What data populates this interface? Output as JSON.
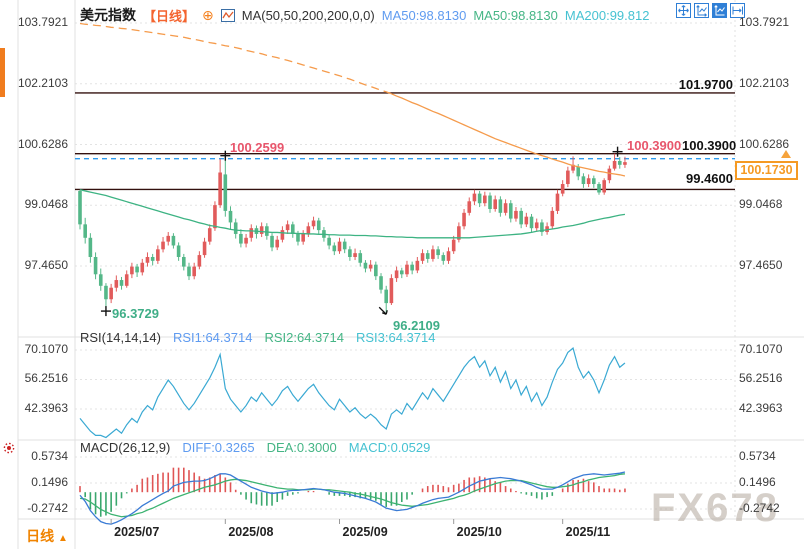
{
  "header": {
    "title": "美元指数",
    "period_tag": "【日线】",
    "plus_icon": "⊕",
    "ma_settings": "MA(50,50,200,200,0,0)",
    "ma50_a": "MA50:98.8130",
    "ma50_b": "MA50:98.8130",
    "ma200": "MA200:99.812"
  },
  "rsi_header": {
    "name": "RSI(14,14,14)",
    "rsi1": "RSI1:64.3714",
    "rsi2": "RSI2:64.3714",
    "rsi3": "RSI3:64.3714"
  },
  "macd_header": {
    "name": "MACD(26,12,9)",
    "diff": "DIFF:0.3265",
    "dea": "DEA:0.3000",
    "macd": "MACD:0.0529"
  },
  "levels": {
    "top_label": "101.9700",
    "mid_red": "100.3900",
    "mid_black": "100.3900",
    "low_label": "99.4600",
    "current": "100.1730"
  },
  "annotations": {
    "high": "100.2599",
    "low_july": "96.3729",
    "low_sep": "96.2109"
  },
  "axis": {
    "main": [
      "103.7921",
      "102.2103",
      "100.6286",
      "99.0468",
      "97.4650"
    ],
    "rsi": [
      "70.1070",
      "56.2516",
      "42.3963"
    ],
    "macd": [
      "0.5734",
      "0.1496",
      "-0.2742"
    ],
    "months": [
      "2025/07",
      "2025/08",
      "2025/09",
      "2025/10",
      "2025/11"
    ]
  },
  "footer": {
    "period": "日线",
    "arrow": "▲"
  },
  "watermark": "FX678",
  "colors": {
    "up": "#e15b5b",
    "down": "#54b788",
    "ma50": "#3db383",
    "ma200": "#f59b4c",
    "rsi": "#3aa9d3",
    "diff": "#3a7bd5",
    "dea": "#3cb371",
    "hist_up": "#e05555",
    "hist_dn": "#3aa76d",
    "level_line": "#33100e",
    "dashed_blue": "#2e9bf0",
    "grid": "#e3e3e3",
    "frame": "#e0e0e0",
    "accent_orange": "#f59a23"
  },
  "chart_data": {
    "type": "candlestick+rsi+macd",
    "title": "美元指数 日线",
    "months_index": [
      6,
      28,
      50,
      72,
      93
    ],
    "hlines": [
      101.97,
      100.39,
      99.46
    ],
    "dashed_level": 100.2599,
    "current_price": 100.173,
    "main_axis_ticks": [
      103.7921,
      102.2103,
      100.6286,
      99.0468,
      97.465
    ],
    "rsi_axis_ticks": [
      70.107,
      56.2516,
      42.3963
    ],
    "macd_axis_ticks": [
      0.5734,
      0.1496,
      -0.2742
    ],
    "markers": {
      "high_i": 28,
      "low1_i": 5,
      "low2_i": 59,
      "last_high_i": 103
    },
    "candles": [
      [
        99.42,
        99.45,
        98.42,
        98.55
      ],
      [
        98.55,
        98.72,
        98.05,
        98.2
      ],
      [
        98.2,
        98.32,
        97.55,
        97.7
      ],
      [
        97.7,
        97.82,
        97.12,
        97.25
      ],
      [
        97.25,
        97.4,
        96.82,
        96.95
      ],
      [
        96.95,
        97.02,
        96.37,
        96.6
      ],
      [
        96.6,
        97.0,
        96.5,
        96.9
      ],
      [
        96.9,
        97.22,
        96.8,
        97.1
      ],
      [
        97.1,
        97.18,
        96.85,
        96.95
      ],
      [
        96.95,
        97.35,
        96.9,
        97.25
      ],
      [
        97.25,
        97.55,
        97.15,
        97.45
      ],
      [
        97.45,
        97.52,
        97.18,
        97.3
      ],
      [
        97.3,
        97.65,
        97.22,
        97.55
      ],
      [
        97.55,
        97.82,
        97.45,
        97.7
      ],
      [
        97.7,
        97.78,
        97.48,
        97.6
      ],
      [
        97.6,
        98.0,
        97.52,
        97.9
      ],
      [
        97.9,
        98.22,
        97.82,
        98.1
      ],
      [
        98.1,
        98.35,
        98.0,
        98.25
      ],
      [
        98.25,
        98.32,
        97.92,
        98.0
      ],
      [
        98.0,
        98.08,
        97.6,
        97.7
      ],
      [
        97.7,
        97.78,
        97.35,
        97.45
      ],
      [
        97.45,
        97.55,
        97.1,
        97.2
      ],
      [
        97.2,
        97.55,
        97.12,
        97.45
      ],
      [
        97.45,
        97.85,
        97.38,
        97.75
      ],
      [
        97.75,
        98.2,
        97.68,
        98.1
      ],
      [
        98.1,
        98.55,
        98.02,
        98.45
      ],
      [
        98.45,
        99.15,
        98.38,
        99.05
      ],
      [
        99.05,
        100.26,
        98.98,
        99.9
      ],
      [
        99.85,
        100.24,
        98.75,
        98.9
      ],
      [
        98.9,
        99.02,
        98.42,
        98.6
      ],
      [
        98.6,
        98.7,
        98.18,
        98.3
      ],
      [
        98.3,
        98.42,
        97.95,
        98.05
      ],
      [
        98.05,
        98.3,
        97.95,
        98.2
      ],
      [
        98.2,
        98.55,
        98.1,
        98.45
      ],
      [
        98.45,
        98.52,
        98.18,
        98.3
      ],
      [
        98.3,
        98.6,
        98.22,
        98.5
      ],
      [
        98.5,
        98.58,
        98.15,
        98.25
      ],
      [
        98.25,
        98.32,
        97.85,
        97.95
      ],
      [
        97.95,
        98.25,
        97.88,
        98.15
      ],
      [
        98.15,
        98.5,
        98.08,
        98.4
      ],
      [
        98.4,
        98.65,
        98.3,
        98.55
      ],
      [
        98.55,
        98.62,
        98.2,
        98.3
      ],
      [
        98.3,
        98.38,
        98.0,
        98.1
      ],
      [
        98.1,
        98.4,
        98.02,
        98.3
      ],
      [
        98.3,
        98.6,
        98.22,
        98.5
      ],
      [
        98.5,
        98.75,
        98.42,
        98.65
      ],
      [
        98.65,
        98.72,
        98.3,
        98.4
      ],
      [
        98.4,
        98.48,
        98.1,
        98.2
      ],
      [
        98.2,
        98.28,
        97.9,
        98.0
      ],
      [
        98.0,
        98.08,
        97.75,
        97.85
      ],
      [
        97.85,
        98.2,
        97.78,
        98.1
      ],
      [
        98.1,
        98.18,
        97.8,
        97.9
      ],
      [
        97.9,
        97.98,
        97.6,
        97.7
      ],
      [
        97.7,
        97.92,
        97.62,
        97.8
      ],
      [
        97.8,
        97.88,
        97.45,
        97.55
      ],
      [
        97.55,
        97.62,
        97.3,
        97.4
      ],
      [
        97.4,
        97.62,
        97.32,
        97.5
      ],
      [
        97.5,
        97.58,
        97.1,
        97.2
      ],
      [
        97.2,
        97.28,
        96.75,
        96.85
      ],
      [
        96.85,
        96.95,
        96.21,
        96.5
      ],
      [
        96.5,
        97.25,
        96.45,
        97.15
      ],
      [
        97.15,
        97.45,
        97.05,
        97.35
      ],
      [
        97.35,
        97.42,
        97.15,
        97.25
      ],
      [
        97.25,
        97.6,
        97.18,
        97.5
      ],
      [
        97.5,
        97.58,
        97.25,
        97.35
      ],
      [
        97.35,
        97.7,
        97.28,
        97.6
      ],
      [
        97.6,
        97.9,
        97.52,
        97.8
      ],
      [
        97.8,
        97.88,
        97.55,
        97.65
      ],
      [
        97.65,
        98.0,
        97.58,
        97.9
      ],
      [
        97.9,
        97.98,
        97.65,
        97.75
      ],
      [
        97.75,
        97.82,
        97.5,
        97.6
      ],
      [
        97.6,
        97.95,
        97.52,
        97.85
      ],
      [
        97.85,
        98.25,
        97.78,
        98.15
      ],
      [
        98.15,
        98.6,
        98.08,
        98.5
      ],
      [
        98.5,
        98.95,
        98.42,
        98.85
      ],
      [
        98.85,
        99.25,
        98.78,
        99.15
      ],
      [
        99.15,
        99.45,
        99.05,
        99.35
      ],
      [
        99.35,
        99.42,
        99.0,
        99.1
      ],
      [
        99.1,
        99.4,
        99.02,
        99.3
      ],
      [
        99.3,
        99.38,
        98.85,
        98.95
      ],
      [
        98.95,
        99.3,
        98.88,
        99.2
      ],
      [
        99.2,
        99.28,
        98.75,
        98.85
      ],
      [
        98.85,
        99.2,
        98.78,
        99.1
      ],
      [
        99.1,
        99.18,
        98.6,
        98.7
      ],
      [
        98.7,
        99.0,
        98.62,
        98.9
      ],
      [
        98.9,
        98.98,
        98.45,
        98.55
      ],
      [
        98.55,
        98.85,
        98.48,
        98.75
      ],
      [
        98.75,
        98.82,
        98.35,
        98.45
      ],
      [
        98.45,
        98.7,
        98.38,
        98.6
      ],
      [
        98.6,
        98.68,
        98.25,
        98.35
      ],
      [
        98.35,
        98.6,
        98.28,
        98.5
      ],
      [
        98.5,
        99.0,
        98.42,
        98.9
      ],
      [
        98.9,
        99.45,
        98.82,
        99.35
      ],
      [
        99.35,
        99.7,
        99.28,
        99.6
      ],
      [
        99.6,
        100.05,
        99.52,
        99.95
      ],
      [
        99.95,
        100.32,
        99.88,
        100.1
      ],
      [
        100.05,
        100.12,
        99.7,
        99.8
      ],
      [
        99.8,
        99.88,
        99.5,
        99.6
      ],
      [
        99.6,
        99.85,
        99.52,
        99.75
      ],
      [
        99.75,
        99.82,
        99.5,
        99.6
      ],
      [
        99.6,
        99.65,
        99.32,
        99.38
      ],
      [
        99.38,
        99.75,
        99.32,
        99.7
      ],
      [
        99.7,
        100.08,
        99.62,
        100.0
      ],
      [
        100.0,
        100.39,
        99.95,
        100.2
      ],
      [
        100.2,
        100.3,
        100.0,
        100.1
      ],
      [
        100.1,
        100.31,
        100.02,
        100.17
      ]
    ],
    "ma50": [
      99.45,
      99.42,
      99.39,
      99.36,
      99.33,
      99.3,
      99.26,
      99.22,
      99.18,
      99.14,
      99.1,
      99.06,
      99.02,
      98.98,
      98.94,
      98.9,
      98.86,
      98.82,
      98.78,
      98.74,
      98.7,
      98.67,
      98.63,
      98.59,
      98.56,
      98.52,
      98.5,
      98.47,
      98.45,
      98.42,
      98.4,
      98.39,
      98.38,
      98.38,
      98.37,
      98.36,
      98.35,
      98.34,
      98.34,
      98.33,
      98.32,
      98.32,
      98.31,
      98.31,
      98.3,
      98.3,
      98.29,
      98.29,
      98.28,
      98.28,
      98.27,
      98.27,
      98.27,
      98.26,
      98.26,
      98.26,
      98.25,
      98.25,
      98.24,
      98.23,
      98.23,
      98.22,
      98.22,
      98.21,
      98.21,
      98.2,
      98.2,
      98.2,
      98.2,
      98.2,
      98.2,
      98.2,
      98.2,
      98.2,
      98.2,
      98.2,
      98.21,
      98.22,
      98.23,
      98.24,
      98.25,
      98.26,
      98.27,
      98.28,
      98.29,
      98.3,
      98.32,
      98.34,
      98.37,
      98.39,
      98.41,
      98.43,
      98.45,
      98.48,
      98.5,
      98.52,
      98.55,
      98.58,
      98.62,
      98.65,
      98.68,
      98.71,
      98.73,
      98.76,
      98.79,
      98.81
    ],
    "ma200": [
      103.78,
      103.76,
      103.75,
      103.73,
      103.72,
      103.7,
      103.68,
      103.67,
      103.65,
      103.64,
      103.62,
      103.6,
      103.58,
      103.56,
      103.54,
      103.52,
      103.5,
      103.48,
      103.46,
      103.44,
      103.42,
      103.39,
      103.37,
      103.34,
      103.31,
      103.28,
      103.26,
      103.23,
      103.2,
      103.18,
      103.15,
      103.12,
      103.08,
      103.05,
      103.02,
      102.99,
      102.95,
      102.92,
      102.89,
      102.85,
      102.82,
      102.78,
      102.74,
      102.7,
      102.66,
      102.62,
      102.58,
      102.54,
      102.5,
      102.46,
      102.42,
      102.37,
      102.33,
      102.28,
      102.23,
      102.18,
      102.14,
      102.09,
      102.04,
      102.0,
      101.95,
      101.89,
      101.84,
      101.78,
      101.72,
      101.67,
      101.61,
      101.55,
      101.49,
      101.44,
      101.38,
      101.32,
      101.26,
      101.2,
      101.14,
      101.08,
      101.02,
      100.96,
      100.9,
      100.84,
      100.78,
      100.73,
      100.68,
      100.63,
      100.58,
      100.53,
      100.48,
      100.43,
      100.38,
      100.34,
      100.3,
      100.25,
      100.21,
      100.17,
      100.12,
      100.08,
      100.05,
      100.02,
      99.99,
      99.96,
      99.93,
      99.91,
      99.88,
      99.86,
      99.84,
      99.81
    ],
    "rsi": [
      38,
      35,
      32,
      30,
      30,
      29,
      31,
      33,
      31,
      35,
      38,
      36,
      41,
      44,
      42,
      48,
      52,
      56,
      53,
      49,
      45,
      42,
      45,
      49,
      53,
      57,
      62,
      68,
      52,
      47,
      44,
      41,
      44,
      48,
      46,
      50,
      47,
      44,
      47,
      51,
      53,
      49,
      46,
      49,
      52,
      54,
      50,
      47,
      44,
      42,
      47,
      44,
      41,
      43,
      40,
      38,
      40,
      38,
      35,
      33,
      40,
      42,
      40,
      45,
      42,
      46,
      50,
      47,
      52,
      49,
      46,
      50,
      54,
      58,
      62,
      65,
      67,
      62,
      65,
      58,
      62,
      55,
      60,
      52,
      56,
      49,
      53,
      46,
      50,
      44,
      48,
      55,
      61,
      64,
      69,
      71,
      62,
      57,
      60,
      56,
      50,
      56,
      63,
      67,
      62,
      64
    ],
    "macd": {
      "diff": [
        -0.05,
        -0.15,
        -0.3,
        -0.4,
        -0.48,
        -0.51,
        -0.52,
        -0.49,
        -0.45,
        -0.4,
        -0.35,
        -0.29,
        -0.22,
        -0.17,
        -0.12,
        -0.07,
        -0.02,
        0.02,
        0.1,
        0.13,
        0.16,
        0.17,
        0.18,
        0.18,
        0.19,
        0.22,
        0.26,
        0.3,
        0.3,
        0.28,
        0.23,
        0.18,
        0.13,
        0.08,
        0.05,
        0.02,
        0.0,
        -0.02,
        -0.01,
        0.0,
        0.02,
        0.03,
        0.03,
        0.04,
        0.05,
        0.06,
        0.05,
        0.04,
        0.02,
        0.0,
        -0.01,
        -0.02,
        -0.04,
        -0.06,
        -0.08,
        -0.1,
        -0.13,
        -0.16,
        -0.21,
        -0.26,
        -0.28,
        -0.3,
        -0.29,
        -0.28,
        -0.25,
        -0.22,
        -0.18,
        -0.15,
        -0.12,
        -0.1,
        -0.09,
        -0.08,
        -0.04,
        0.0,
        0.05,
        0.1,
        0.14,
        0.18,
        0.2,
        0.22,
        0.23,
        0.24,
        0.23,
        0.22,
        0.2,
        0.18,
        0.15,
        0.12,
        0.08,
        0.05,
        0.05,
        0.05,
        0.08,
        0.12,
        0.17,
        0.22,
        0.25,
        0.28,
        0.29,
        0.3,
        0.29,
        0.28,
        0.29,
        0.3,
        0.31,
        0.33
      ],
      "dea": [
        -0.1,
        -0.11,
        -0.16,
        -0.22,
        -0.28,
        -0.32,
        -0.36,
        -0.38,
        -0.4,
        -0.39,
        -0.38,
        -0.35,
        -0.33,
        -0.29,
        -0.26,
        -0.22,
        -0.18,
        -0.14,
        -0.1,
        -0.07,
        -0.04,
        -0.01,
        0.02,
        0.05,
        0.08,
        0.1,
        0.12,
        0.15,
        0.18,
        0.2,
        0.21,
        0.2,
        0.19,
        0.17,
        0.15,
        0.13,
        0.11,
        0.09,
        0.07,
        0.06,
        0.05,
        0.05,
        0.04,
        0.04,
        0.04,
        0.05,
        0.05,
        0.04,
        0.04,
        0.03,
        0.02,
        0.01,
        0.0,
        -0.02,
        -0.03,
        -0.05,
        -0.07,
        -0.09,
        -0.11,
        -0.14,
        -0.17,
        -0.19,
        -0.21,
        -0.22,
        -0.23,
        -0.22,
        -0.21,
        -0.2,
        -0.18,
        -0.16,
        -0.14,
        -0.12,
        -0.1,
        -0.07,
        -0.05,
        -0.02,
        0.02,
        0.05,
        0.08,
        0.11,
        0.14,
        0.16,
        0.18,
        0.19,
        0.19,
        0.19,
        0.17,
        0.15,
        0.13,
        0.11,
        0.09,
        0.08,
        0.08,
        0.09,
        0.1,
        0.12,
        0.15,
        0.17,
        0.2,
        0.22,
        0.24,
        0.25,
        0.26,
        0.27,
        0.29,
        0.3
      ],
      "hist": [
        0.1,
        -0.08,
        -0.28,
        -0.36,
        -0.4,
        -0.38,
        -0.32,
        -0.22,
        -0.1,
        -0.02,
        0.06,
        0.12,
        0.22,
        0.24,
        0.28,
        0.3,
        0.32,
        0.32,
        0.4,
        0.4,
        0.4,
        0.36,
        0.32,
        0.26,
        0.22,
        0.24,
        0.28,
        0.3,
        0.24,
        0.16,
        0.04,
        -0.04,
        -0.12,
        -0.18,
        -0.2,
        -0.22,
        -0.22,
        -0.22,
        -0.16,
        -0.12,
        -0.06,
        -0.04,
        -0.02,
        0.0,
        0.02,
        0.02,
        0.0,
        0.0,
        -0.04,
        -0.06,
        -0.06,
        -0.06,
        -0.08,
        -0.08,
        -0.1,
        -0.1,
        -0.12,
        -0.14,
        -0.2,
        -0.24,
        -0.22,
        -0.22,
        -0.16,
        -0.12,
        -0.04,
        0.0,
        0.06,
        0.1,
        0.12,
        0.12,
        0.1,
        0.08,
        0.12,
        0.14,
        0.2,
        0.24,
        0.24,
        0.26,
        0.24,
        0.22,
        0.18,
        0.16,
        0.1,
        0.06,
        0.02,
        -0.02,
        -0.04,
        -0.06,
        -0.1,
        -0.12,
        -0.08,
        -0.06,
        0.0,
        0.06,
        0.14,
        0.2,
        0.2,
        0.22,
        0.18,
        0.16,
        0.1,
        0.06,
        0.06,
        0.06,
        0.04,
        0.06
      ]
    }
  }
}
